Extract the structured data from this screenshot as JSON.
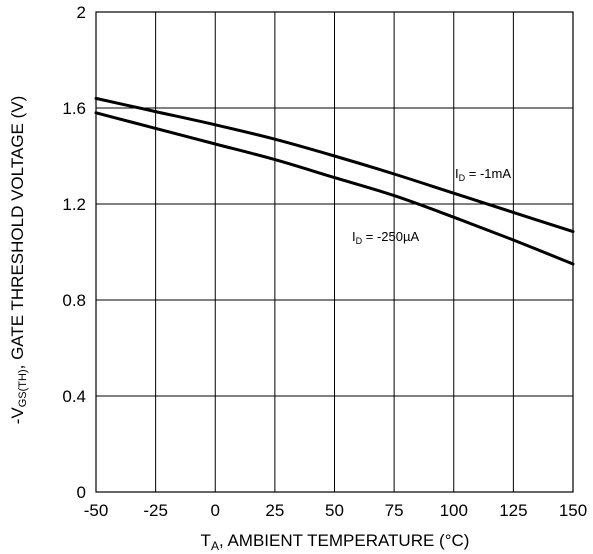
{
  "chart_data": {
    "type": "line",
    "title": "",
    "xlabel": {
      "main": "T",
      "sub": "A",
      "rest": ", AMBIENT TEMPERATURE (°C)"
    },
    "ylabel": {
      "prefix": "-V",
      "sub": "GS(TH)",
      "rest": ", GATE THRESHOLD VOLTAGE (V)"
    },
    "xlim": [
      -50,
      150
    ],
    "ylim": [
      0,
      2
    ],
    "xticks": [
      -50,
      -25,
      0,
      25,
      50,
      75,
      100,
      125,
      150
    ],
    "yticks": [
      0,
      0.4,
      0.8,
      1.2,
      1.6,
      2
    ],
    "xtick_labels": [
      "-50",
      "-25",
      "0",
      "25",
      "50",
      "75",
      "100",
      "125",
      "150"
    ],
    "ytick_labels": [
      "0",
      "0.4",
      "0.8",
      "1.2",
      "1.6",
      "2"
    ],
    "grid": true,
    "series": [
      {
        "name": "I_D = -1mA",
        "label": {
          "main": "I",
          "sub": "D",
          "rest": " = -1mA"
        },
        "x": [
          -50,
          -25,
          0,
          25,
          50,
          75,
          100,
          125,
          150
        ],
        "y": [
          1.64,
          1.585,
          1.53,
          1.47,
          1.4,
          1.325,
          1.245,
          1.165,
          1.085
        ]
      },
      {
        "name": "I_D = -250µA",
        "label": {
          "main": "I",
          "sub": "D",
          "rest": " = -250µA"
        },
        "x": [
          -50,
          -25,
          0,
          25,
          50,
          75,
          100,
          125,
          150
        ],
        "y": [
          1.58,
          1.515,
          1.45,
          1.385,
          1.31,
          1.235,
          1.145,
          1.05,
          0.95
        ]
      }
    ]
  }
}
